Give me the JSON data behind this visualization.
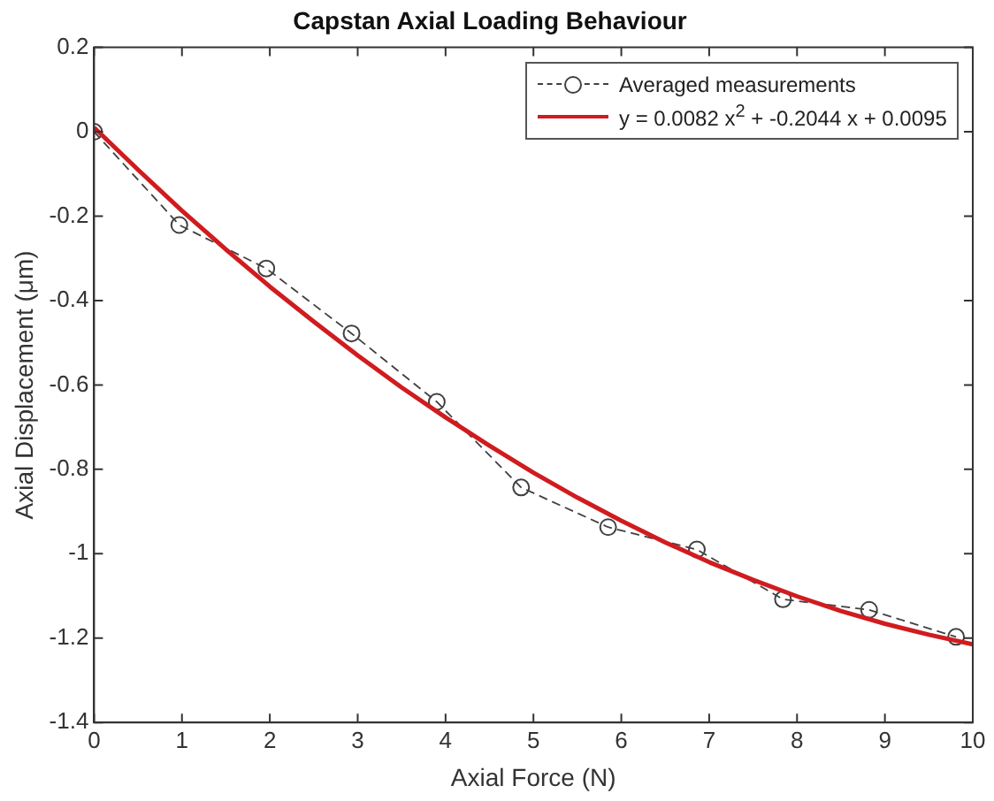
{
  "chart_data": {
    "type": "line",
    "title": "Capstan Axial Loading Behaviour",
    "xlabel": "Axial Force (N)",
    "ylabel": "Axial Displacement (μm)",
    "xlim": [
      0,
      10
    ],
    "xticks": [
      0,
      1,
      2,
      3,
      4,
      5,
      6,
      7,
      8,
      9,
      10
    ],
    "ylim": [
      -1.4,
      0.2
    ],
    "yticks": [
      -1.4,
      -1.2,
      -1,
      -0.8,
      -0.6,
      -0.4,
      -0.2,
      0,
      0.2
    ],
    "grid": false,
    "legend": "top right",
    "series": [
      {
        "name": "Averaged measurements",
        "color": "#404040",
        "marker": "circle",
        "line_style": "dashed",
        "x": [
          0,
          0.97,
          1.96,
          2.93,
          3.9,
          4.86,
          5.85,
          6.86,
          7.84,
          8.82,
          9.81
        ],
        "values": [
          0,
          -0.221,
          -0.324,
          -0.478,
          -0.64,
          -0.843,
          -0.937,
          -0.99,
          -1.108,
          -1.133,
          -1.197
        ]
      },
      {
        "name": "y = 0.0082 x$^{2}$ + -0.2044 x + 0.0095",
        "color": "#d01c1f",
        "marker": "none",
        "line_style": "solid",
        "x": [
          0,
          0.5,
          1,
          1.5,
          2,
          2.5,
          3,
          3.5,
          4,
          4.5,
          5,
          5.5,
          6,
          6.5,
          7,
          7.5,
          8,
          8.5,
          9,
          9.5,
          10
        ],
        "values": [
          0.01,
          -0.09,
          -0.187,
          -0.279,
          -0.367,
          -0.45,
          -0.53,
          -0.606,
          -0.677,
          -0.744,
          -0.808,
          -0.867,
          -0.922,
          -0.973,
          -1.02,
          -1.062,
          -1.101,
          -1.136,
          -1.166,
          -1.192,
          -1.215
        ]
      }
    ]
  }
}
